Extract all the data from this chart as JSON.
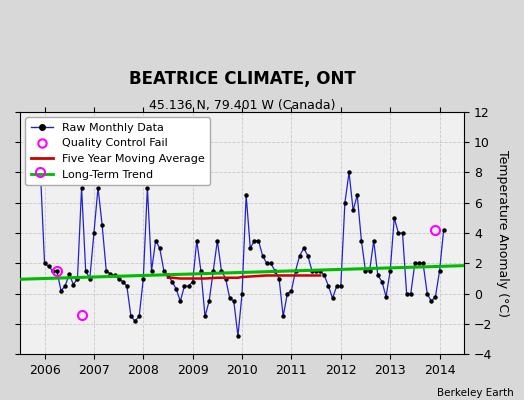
{
  "title": "BEATRICE CLIMATE, ONT",
  "subtitle": "45.136 N, 79.401 W (Canada)",
  "ylabel": "Temperature Anomaly (°C)",
  "credit": "Berkeley Earth",
  "ylim": [
    -4,
    12
  ],
  "yticks": [
    -4,
    -2,
    0,
    2,
    4,
    6,
    8,
    10,
    12
  ],
  "xlim": [
    2005.5,
    2014.5
  ],
  "fig_bg": "#d8d8d8",
  "plot_bg": "#f0f0f0",
  "raw_color": "#2222cc",
  "ma_color": "#cc0000",
  "trend_color": "#00bb00",
  "qc_color": "#ff00ff",
  "monthly_data": [
    2005.917,
    8.0,
    2006.0,
    2.0,
    2006.083,
    1.8,
    2006.167,
    1.5,
    2006.25,
    1.5,
    2006.333,
    0.2,
    2006.417,
    0.5,
    2006.5,
    1.3,
    2006.583,
    0.6,
    2006.667,
    1.0,
    2006.75,
    7.0,
    2006.833,
    1.5,
    2006.917,
    1.0,
    2007.0,
    4.0,
    2007.083,
    7.0,
    2007.167,
    4.5,
    2007.25,
    1.5,
    2007.333,
    1.3,
    2007.417,
    1.2,
    2007.5,
    1.0,
    2007.583,
    0.8,
    2007.667,
    0.5,
    2007.75,
    -1.5,
    2007.833,
    -1.8,
    2007.917,
    -1.5,
    2008.0,
    1.0,
    2008.083,
    7.0,
    2008.167,
    1.5,
    2008.25,
    3.5,
    2008.333,
    3.0,
    2008.417,
    1.5,
    2008.5,
    1.2,
    2008.583,
    0.8,
    2008.667,
    0.3,
    2008.75,
    -0.5,
    2008.833,
    0.5,
    2008.917,
    0.5,
    2009.0,
    0.8,
    2009.083,
    3.5,
    2009.167,
    1.5,
    2009.25,
    -1.5,
    2009.333,
    -0.5,
    2009.417,
    1.5,
    2009.5,
    3.5,
    2009.583,
    1.5,
    2009.667,
    1.0,
    2009.75,
    -0.3,
    2009.833,
    -0.5,
    2009.917,
    -2.8,
    2010.0,
    0.0,
    2010.083,
    6.5,
    2010.167,
    3.0,
    2010.25,
    3.5,
    2010.333,
    3.5,
    2010.417,
    2.5,
    2010.5,
    2.0,
    2010.583,
    2.0,
    2010.667,
    1.5,
    2010.75,
    1.0,
    2010.833,
    -1.5,
    2010.917,
    0.0,
    2011.0,
    0.2,
    2011.083,
    1.5,
    2011.167,
    2.5,
    2011.25,
    3.0,
    2011.333,
    2.5,
    2011.417,
    1.5,
    2011.5,
    1.5,
    2011.583,
    1.5,
    2011.667,
    1.2,
    2011.75,
    0.5,
    2011.833,
    -0.3,
    2011.917,
    0.5,
    2012.0,
    0.5,
    2012.083,
    6.0,
    2012.167,
    8.0,
    2012.25,
    5.5,
    2012.333,
    6.5,
    2012.417,
    3.5,
    2012.5,
    1.5,
    2012.583,
    1.5,
    2012.667,
    3.5,
    2012.75,
    1.2,
    2012.833,
    0.8,
    2012.917,
    -0.2,
    2013.0,
    1.5,
    2013.083,
    5.0,
    2013.167,
    4.0,
    2013.25,
    4.0,
    2013.333,
    0.0,
    2013.417,
    0.0,
    2013.5,
    2.0,
    2013.583,
    2.0,
    2013.667,
    2.0,
    2013.75,
    0.0,
    2013.833,
    -0.5,
    2013.917,
    -0.2,
    2014.0,
    1.5,
    2014.083,
    4.2
  ],
  "qc_fail_points": [
    [
      2005.917,
      8.0
    ],
    [
      2006.25,
      1.5
    ],
    [
      2006.75,
      -1.4
    ],
    [
      2013.917,
      4.2
    ]
  ],
  "moving_avg_x": [
    2008.5,
    2008.583,
    2008.75,
    2009.0,
    2009.25,
    2009.5,
    2009.667,
    2009.917,
    2010.0,
    2010.25,
    2010.5,
    2010.75,
    2011.0,
    2011.25,
    2011.5,
    2011.583
  ],
  "moving_avg_y": [
    1.05,
    1.05,
    1.0,
    1.0,
    1.0,
    1.05,
    1.05,
    1.05,
    1.1,
    1.15,
    1.2,
    1.2,
    1.2,
    1.2,
    1.2,
    1.2
  ],
  "trend_x": [
    2005.5,
    2014.5
  ],
  "trend_y": [
    0.95,
    1.85
  ],
  "xticks": [
    2006,
    2007,
    2008,
    2009,
    2010,
    2011,
    2012,
    2013,
    2014
  ],
  "title_fontsize": 12,
  "subtitle_fontsize": 9,
  "tick_fontsize": 9,
  "legend_fontsize": 8
}
